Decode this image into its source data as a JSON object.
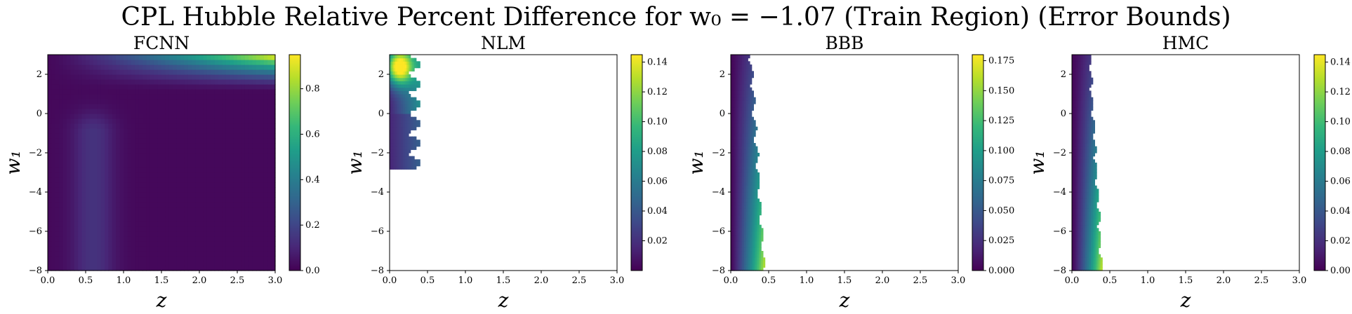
{
  "figure": {
    "title": "CPL Hubble Relative Percent Difference for w₀ = −1.07 (Train Region) (Error Bounds)"
  },
  "colors": {
    "empty": "#ffffff",
    "viridis": [
      "#440154",
      "#482878",
      "#3e4989",
      "#31688e",
      "#26828e",
      "#1f9e89",
      "#35b779",
      "#6ece58",
      "#b5de2b",
      "#fde725"
    ]
  },
  "chart_data": [
    {
      "type": "heatmap",
      "title": "FCNN",
      "xlabel": "z",
      "ylabel": "w₁",
      "xlim": [
        0.0,
        3.0
      ],
      "ylim": [
        -8,
        3
      ],
      "xticks": [
        "0.0",
        "0.5",
        "1.0",
        "1.5",
        "2.0",
        "2.5",
        "3.0"
      ],
      "yticks": [
        "−8",
        "−6",
        "−4",
        "−2",
        "0",
        "2"
      ],
      "colorbar": {
        "min": 0.0,
        "max": 0.95,
        "ticks": [
          "0.0",
          "0.2",
          "0.4",
          "0.6",
          "0.8"
        ]
      },
      "grid": false,
      "description_values": {
        "max_region": "upper right (z ≈ 3, w₁ ≈ 3)",
        "max_value": 0.95,
        "background_value": 0.02,
        "secondary_band": {
          "z_center": 0.6,
          "w1_range": [
            -8,
            -2
          ],
          "value": 0.12
        }
      }
    },
    {
      "type": "heatmap",
      "title": "NLM",
      "xlabel": "z",
      "ylabel": "w₁",
      "xlim": [
        0.0,
        3.0
      ],
      "ylim": [
        -8,
        3
      ],
      "xticks": [
        "0.0",
        "0.5",
        "1.0",
        "1.5",
        "2.0",
        "2.5",
        "3.0"
      ],
      "yticks": [
        "−8",
        "−6",
        "−4",
        "−2",
        "0",
        "2"
      ],
      "colorbar": {
        "min": 0.0,
        "max": 0.145,
        "ticks": [
          "0.02",
          "0.04",
          "0.06",
          "0.08",
          "0.10",
          "0.12",
          "0.14"
        ]
      },
      "grid": false,
      "data_extent": {
        "z_max": 0.42,
        "w1_min": -2.8,
        "w1_max": 3
      },
      "description_values": {
        "max_region": "upper left (z ≈ 0.1, w₁ ≈ 2.5)",
        "max_value": 0.14
      }
    },
    {
      "type": "heatmap",
      "title": "BBB",
      "xlabel": "z",
      "ylabel": "w₁",
      "xlim": [
        0.0,
        3.0
      ],
      "ylim": [
        -8,
        3
      ],
      "xticks": [
        "0.0",
        "0.5",
        "1.0",
        "1.5",
        "2.0",
        "2.5",
        "3.0"
      ],
      "yticks": [
        "−8",
        "−6",
        "−4",
        "−2",
        "0",
        "2"
      ],
      "colorbar": {
        "min": 0.0,
        "max": 0.18,
        "ticks": [
          "0.000",
          "0.025",
          "0.050",
          "0.075",
          "0.100",
          "0.125",
          "0.150",
          "0.175"
        ]
      },
      "grid": false,
      "data_extent": {
        "z_max": 0.5,
        "w1_min": -8,
        "w1_max": 3
      },
      "description_values": {
        "max_region": "lower right edge of data (z ≈ 0.4, w₁ ≈ −6)",
        "max_value": 0.17
      }
    },
    {
      "type": "heatmap",
      "title": "HMC",
      "xlabel": "z",
      "ylabel": "w₁",
      "xlim": [
        0.0,
        3.0
      ],
      "ylim": [
        -8,
        3
      ],
      "xticks": [
        "0.0",
        "0.5",
        "1.0",
        "1.5",
        "2.0",
        "2.5",
        "3.0"
      ],
      "yticks": [
        "−8",
        "−6",
        "−4",
        "−2",
        "0",
        "2"
      ],
      "colorbar": {
        "min": 0.0,
        "max": 0.145,
        "ticks": [
          "0.00",
          "0.02",
          "0.04",
          "0.06",
          "0.08",
          "0.10",
          "0.12",
          "0.14"
        ]
      },
      "grid": false,
      "data_extent": {
        "z_max": 0.45,
        "w1_min": -8,
        "w1_max": 3
      },
      "description_values": {
        "max_region": "lower right edge of data (z ≈ 0.35, w₁ ≈ −6)",
        "max_value": 0.13
      }
    }
  ]
}
